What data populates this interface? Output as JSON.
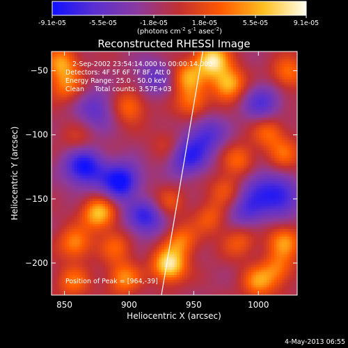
{
  "colorbar": {
    "tick_labels": [
      "-9.1e-05",
      "-5.5e-05",
      "-1.8e-05",
      "1.8e-05",
      "5.5e-05",
      "9.1e-05"
    ],
    "unit_prefix": "(photons cm",
    "unit_exp1": "-2",
    "unit_mid": " s",
    "unit_exp2": "-1",
    "unit_mid2": " asec",
    "unit_exp3": "-2",
    "unit_suffix": ")",
    "colors": [
      "#1010ff",
      "#5a30d0",
      "#8a3aa0",
      "#c23030",
      "#ff5a00",
      "#ffc020",
      "#fffff0"
    ]
  },
  "chart_data": {
    "type": "heatmap",
    "title": "Reconstructed RHESSI Image",
    "xlabel": "Heliocentric X (arcsec)",
    "ylabel": "Heliocentric Y (arcsec)",
    "xlim": [
      840,
      1030
    ],
    "ylim": [
      -225,
      -35
    ],
    "x_ticks": [
      850,
      900,
      950,
      1000
    ],
    "y_ticks": [
      -50,
      -100,
      -150,
      -200
    ],
    "x_tick_labels": [
      "850",
      "900",
      "950",
      "1000"
    ],
    "y_tick_labels": [
      "−50",
      "−100",
      "−150",
      "−200"
    ],
    "colorbar_range": [
      -9.1e-05,
      9.1e-05
    ],
    "annotations": [
      "2-Sep-2002 23:54:14.000 to 00:00:14.000",
      "Detectors: 4F 5F 6F 7F 8F, Att 0",
      "Energy Range: 25.0 - 50.0 keV",
      "Clean     Total counts: 3.57E+03"
    ],
    "peak_label": "Position of Peak = [964,-39]",
    "limb_line": [
      [
        925,
        -225
      ],
      [
        957,
        -35
      ]
    ],
    "sources": [
      {
        "x": 964,
        "y": -42,
        "peak": 9.1e-05
      },
      {
        "x": 977,
        "y": -60,
        "peak": 7.5e-05
      },
      {
        "x": 949,
        "y": -75,
        "peak": 5e-05
      },
      {
        "x": 945,
        "y": -55,
        "peak": 6e-05
      },
      {
        "x": 848,
        "y": -44,
        "peak": 6e-05
      },
      {
        "x": 851,
        "y": -62,
        "peak": 4.5e-05
      },
      {
        "x": 1023,
        "y": -52,
        "peak": 5e-05
      },
      {
        "x": 1008,
        "y": -98,
        "peak": 4.5e-05
      },
      {
        "x": 1020,
        "y": -115,
        "peak": 4e-05
      },
      {
        "x": 985,
        "y": -120,
        "peak": 4.5e-05
      },
      {
        "x": 975,
        "y": -143,
        "peak": 4e-05
      },
      {
        "x": 963,
        "y": -165,
        "peak": 3.8e-05
      },
      {
        "x": 985,
        "y": -183,
        "peak": 4e-05
      },
      {
        "x": 1020,
        "y": -183,
        "peak": 6e-05
      },
      {
        "x": 1015,
        "y": -205,
        "peak": 4.5e-05
      },
      {
        "x": 1000,
        "y": -215,
        "peak": 5.5e-05
      },
      {
        "x": 931,
        "y": -202,
        "peak": 9.1e-05
      },
      {
        "x": 940,
        "y": -183,
        "peak": 5e-05
      },
      {
        "x": 875,
        "y": -162,
        "peak": 5e-05
      },
      {
        "x": 858,
        "y": -185,
        "peak": 5.5e-05
      },
      {
        "x": 890,
        "y": -187,
        "peak": 4e-05
      },
      {
        "x": 896,
        "y": -212,
        "peak": 5.5e-05
      },
      {
        "x": 857,
        "y": -215,
        "peak": 4.5e-05
      },
      {
        "x": 905,
        "y": -148,
        "peak": 3.5e-05
      },
      {
        "x": 930,
        "y": -152,
        "peak": 3.5e-05
      },
      {
        "x": 900,
        "y": -78,
        "peak": 5e-05
      },
      {
        "x": 860,
        "y": -105,
        "peak": 2.5e-05
      },
      {
        "x": 930,
        "y": -107,
        "peak": 2.5e-05
      },
      {
        "x": 880,
        "y": -160,
        "peak": 3e-05
      }
    ],
    "minima": [
      {
        "x": 865,
        "y": -125,
        "depth": -8e-05
      },
      {
        "x": 895,
        "y": -138,
        "depth": -9.1e-05
      },
      {
        "x": 912,
        "y": -163,
        "depth": -7e-05
      },
      {
        "x": 945,
        "y": -118,
        "depth": -6e-05
      },
      {
        "x": 960,
        "y": -100,
        "depth": -5e-05
      },
      {
        "x": 1003,
        "y": -75,
        "depth": -5e-05
      },
      {
        "x": 1018,
        "y": -150,
        "depth": -6e-05
      },
      {
        "x": 875,
        "y": -80,
        "depth": -4.5e-05
      },
      {
        "x": 990,
        "y": -160,
        "depth": -4.5e-05
      },
      {
        "x": 1000,
        "y": -140,
        "depth": -4e-05
      },
      {
        "x": 920,
        "y": -55,
        "depth": -4e-05
      }
    ]
  },
  "footer": {
    "date": "4-May-2013 06:55"
  }
}
